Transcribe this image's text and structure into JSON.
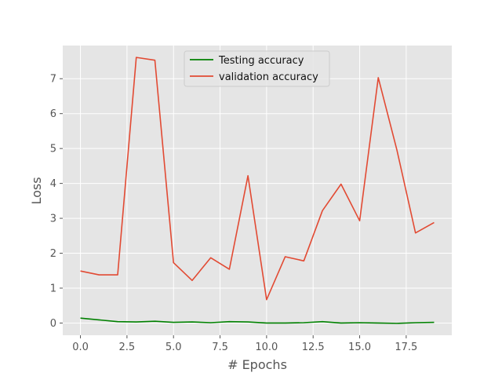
{
  "chart_data": {
    "type": "line",
    "title": "",
    "xlabel": "# Epochs",
    "ylabel": "Loss",
    "xlim": [
      -0.95,
      19.95
    ],
    "ylim": [
      -0.35,
      7.95
    ],
    "xticks": [
      0,
      2.5,
      5,
      7.5,
      10,
      12.5,
      15,
      17.5
    ],
    "xtick_labels": [
      "0.0",
      "2.5",
      "5.0",
      "7.5",
      "10.0",
      "12.5",
      "15.0",
      "17.5"
    ],
    "yticks": [
      0,
      1,
      2,
      3,
      4,
      5,
      6,
      7
    ],
    "ytick_labels": [
      "0",
      "1",
      "2",
      "3",
      "4",
      "5",
      "6",
      "7"
    ],
    "grid": true,
    "style": "ggplot",
    "legend_position": "upper center",
    "x": [
      0,
      1,
      2,
      3,
      4,
      5,
      6,
      7,
      8,
      9,
      10,
      11,
      12,
      13,
      14,
      15,
      16,
      17,
      18,
      19
    ],
    "series": [
      {
        "name": "Testing accuracy",
        "color": "#008000",
        "values": [
          0.14,
          0.09,
          0.04,
          0.03,
          0.05,
          0.02,
          0.03,
          0.01,
          0.04,
          0.03,
          0.0,
          0.0,
          0.01,
          0.04,
          0.0,
          0.01,
          0.0,
          -0.01,
          0.01,
          0.02
        ]
      },
      {
        "name": "validation accuracy",
        "color": "#E24A33",
        "values": [
          1.49,
          1.38,
          1.38,
          7.61,
          7.53,
          1.73,
          1.22,
          1.87,
          1.54,
          4.22,
          0.67,
          1.9,
          1.78,
          3.22,
          3.98,
          2.93,
          7.03,
          4.96,
          2.58,
          2.88
        ]
      }
    ]
  }
}
